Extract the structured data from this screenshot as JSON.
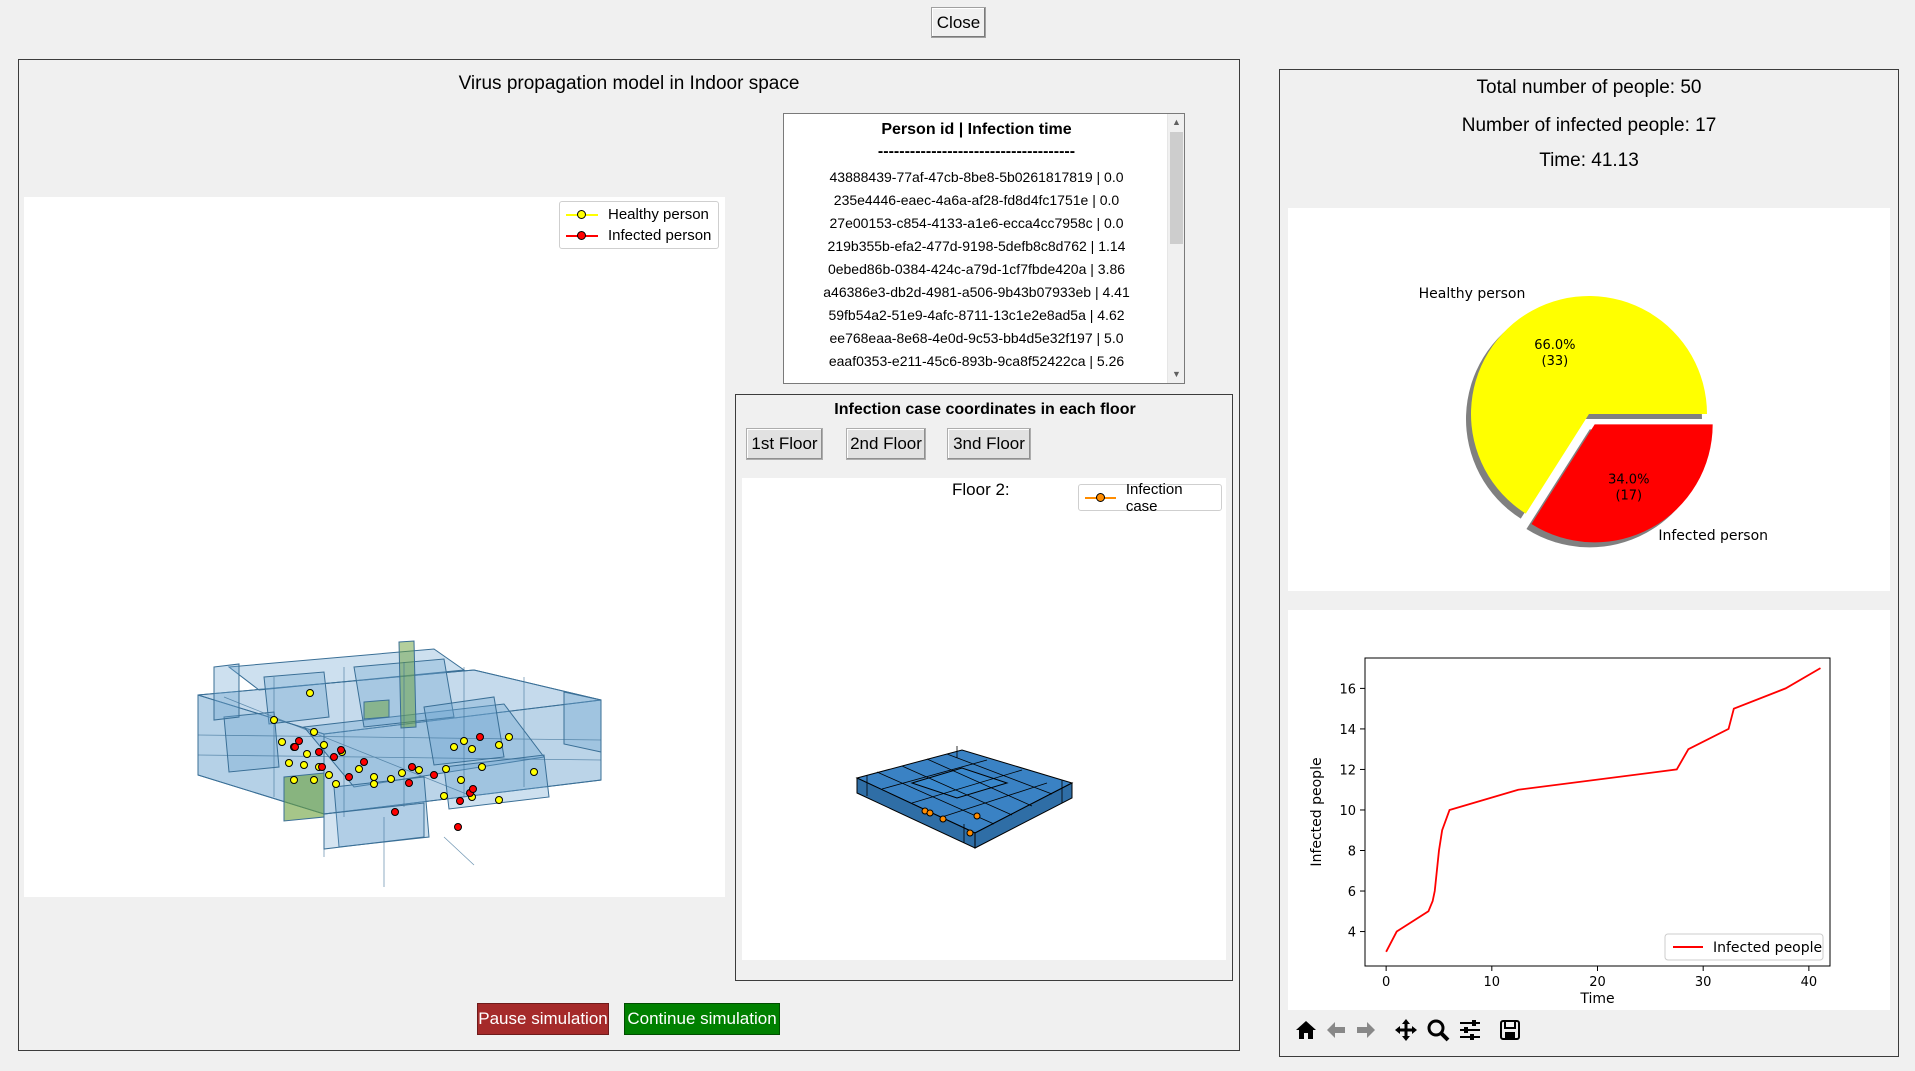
{
  "top": {
    "close_label": "Close"
  },
  "left_panel": {
    "title": "Virus propagation model in Indoor space",
    "legend": {
      "healthy": "Healthy person",
      "infected": "Infected person"
    },
    "pause_label": "Pause simulation",
    "continue_label": "Continue simulation"
  },
  "infection_list": {
    "header": "Person id  |  Infection time",
    "separator": "-------------------------------------",
    "items": [
      "43888439-77af-47cb-8be8-5b0261817819  |  0.0",
      "235e4446-eaec-4a6a-af28-fd8d4fc1751e  |  0.0",
      "27e00153-c854-4133-a1e6-ecca4cc7958c  |  0.0",
      "219b355b-efa2-477d-9198-5defb8c8d762  |  1.14",
      "0ebed86b-0384-424c-a79d-1cf7fbde420a  |  3.86",
      "a46386e3-db2d-4981-a506-9b43b07933eb  |  4.41",
      "59fb54a2-51e9-4afc-8711-13c1e2e8ad5a  |  4.62",
      "ee768eaa-8e68-4e0d-9c53-bb4d5e32f197  |  5.0",
      "eaaf0353-e211-45c6-893b-9ca8f52422ca  |  5.26"
    ]
  },
  "floor_panel": {
    "title": "Infection case coordinates in each floor",
    "buttons": [
      "1st Floor",
      "2nd Floor",
      "3nd Floor"
    ],
    "plot_title": "Floor 2:",
    "legend": "Infection case"
  },
  "stats": {
    "total": "Total number of people: 50",
    "infected": "Number of infected people: 17",
    "time": "Time: 41.13"
  },
  "colors": {
    "healthy": "#ffff00",
    "infected": "#ff0000",
    "infection_case": "#ff8c00",
    "pause_btn": "#a52a2a",
    "continue_btn": "#008000"
  },
  "chart_data": [
    {
      "type": "pie",
      "labels": [
        "Healthy person",
        "Infected person"
      ],
      "values": [
        33,
        17
      ],
      "pct_labels": [
        "66.0%",
        "34.0%"
      ],
      "count_labels": [
        "(33)",
        "(17)"
      ],
      "colors": [
        "#ffff00",
        "#ff0000"
      ],
      "explode": [
        0,
        0.1
      ]
    },
    {
      "type": "line",
      "xlabel": "Time",
      "ylabel": "Infected people",
      "xlim": [
        -2,
        42
      ],
      "ylim": [
        2.3,
        17.5
      ],
      "xticks": [
        0,
        10,
        20,
        30,
        40
      ],
      "yticks": [
        4,
        6,
        8,
        10,
        12,
        14,
        16
      ],
      "series": [
        {
          "name": "Infected people",
          "color": "#ff0000",
          "x": [
            0,
            1,
            4.0,
            4.4,
            4.6,
            5.0,
            5.3,
            6.0,
            12.5,
            27.5,
            28.6,
            32.4,
            32.9,
            37.8,
            41.1
          ],
          "y": [
            3,
            4,
            5,
            5.5,
            6,
            8,
            9,
            10,
            11,
            12,
            13,
            14,
            15,
            16,
            17
          ]
        }
      ],
      "legend": "lower right"
    }
  ],
  "toolbar": {
    "home": "home-icon",
    "back": "back-arrow-icon",
    "forward": "forward-arrow-icon",
    "pan": "pan-icon",
    "zoom": "zoom-icon",
    "configure": "configure-icon",
    "save": "save-icon"
  }
}
